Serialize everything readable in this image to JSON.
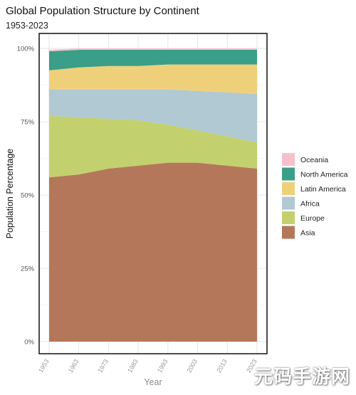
{
  "chart_data": {
    "type": "area",
    "stacked": true,
    "normalized": true,
    "title": "Global Population Structure by Continent",
    "subtitle": "1953-2023",
    "xlabel": "Year",
    "ylabel": "Population Percentage",
    "x": [
      1953,
      1963,
      1973,
      1983,
      1993,
      2003,
      2013,
      2023
    ],
    "x_tick_labels": [
      "1953",
      "1963",
      "1973",
      "1983",
      "1993",
      "2003",
      "2013",
      "2023"
    ],
    "ylim": [
      0,
      100
    ],
    "y_ticks": [
      0,
      25,
      50,
      75,
      100
    ],
    "y_tick_labels": [
      "0%",
      "25%",
      "50%",
      "75%",
      "100%"
    ],
    "grid": true,
    "legend_position": "right",
    "series": [
      {
        "name": "Asia",
        "color": "#b5775a",
        "values": [
          56,
          57,
          59,
          60,
          61,
          61,
          60,
          59
        ]
      },
      {
        "name": "Europe",
        "color": "#c3d06e",
        "values": [
          21,
          19.5,
          17,
          15.5,
          13,
          11,
          10,
          9
        ]
      },
      {
        "name": "Africa",
        "color": "#b0c9d2",
        "values": [
          9,
          9.5,
          10,
          10.5,
          12,
          13.5,
          15,
          16.5
        ]
      },
      {
        "name": "Latin America",
        "color": "#efd07a",
        "values": [
          6.5,
          7.5,
          8,
          8,
          8.5,
          9,
          9.5,
          10
        ]
      },
      {
        "name": "North America",
        "color": "#3a9e88",
        "values": [
          6.5,
          6,
          5.5,
          5.5,
          5,
          5,
          5,
          5
        ]
      },
      {
        "name": "Oceania",
        "color": "#f7c0cc",
        "values": [
          0.5,
          0.5,
          0.5,
          0.5,
          0.5,
          0.5,
          0.5,
          0.5
        ]
      }
    ],
    "legend_order": [
      "Oceania",
      "North America",
      "Latin America",
      "Africa",
      "Europe",
      "Asia"
    ]
  },
  "watermark": "元码手游网"
}
